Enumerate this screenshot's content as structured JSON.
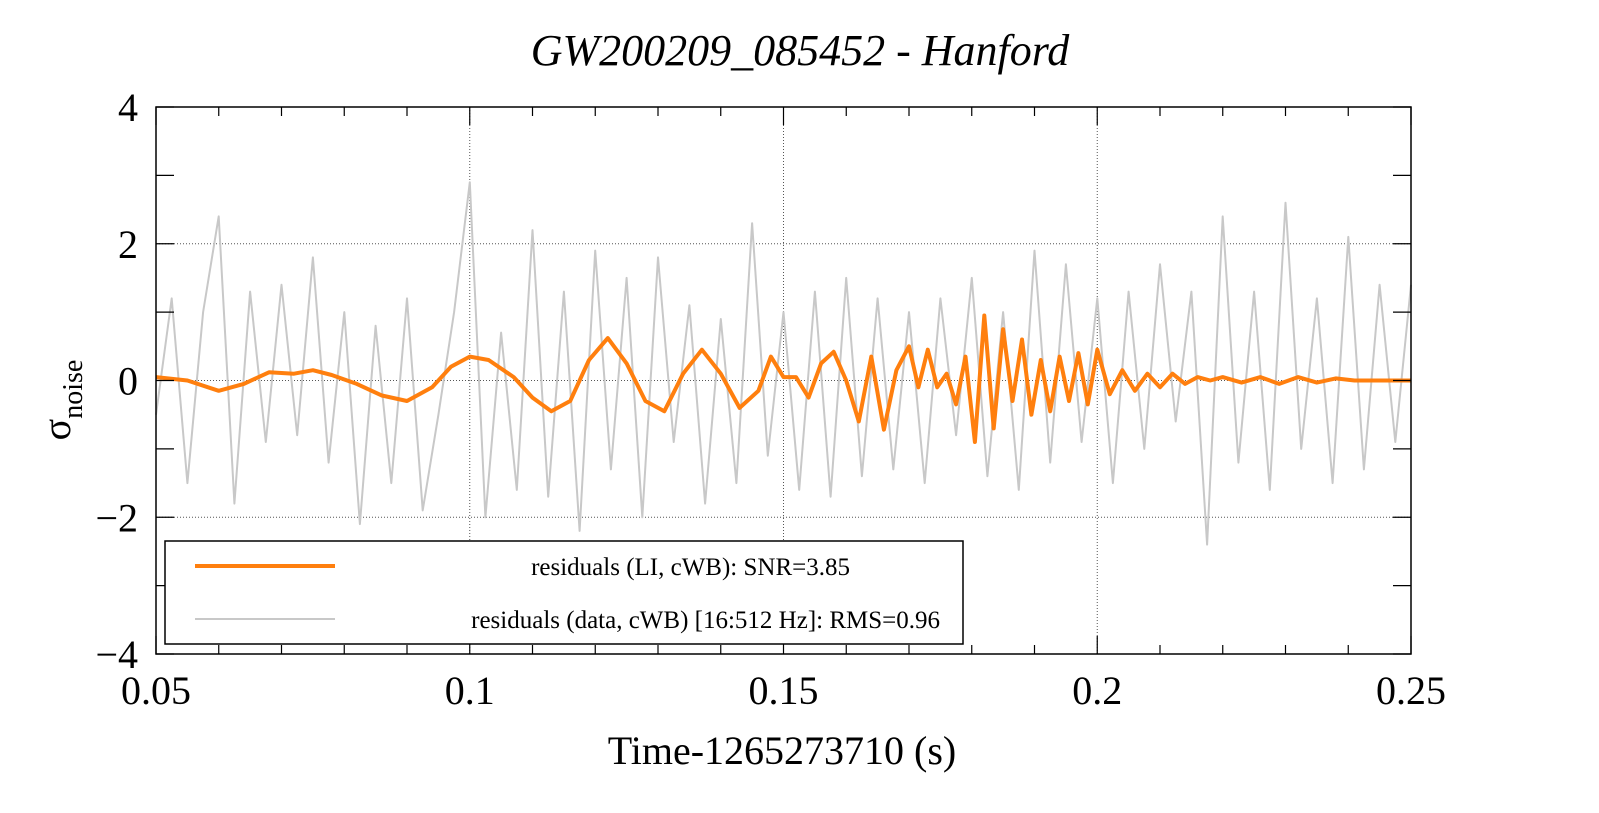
{
  "chart_data": {
    "type": "line",
    "title": "GW200209_085452 - Hanford",
    "xlabel": "Time-1265273710 (s)",
    "ylabel": "σ",
    "ylabel_sub": "noise",
    "xlim": [
      0.05,
      0.25
    ],
    "ylim": [
      -4,
      4
    ],
    "x_ticks": [
      0.05,
      0.1,
      0.15,
      0.2,
      0.25
    ],
    "x_tick_labels": [
      "0.05",
      "0.1",
      "0.15",
      "0.2",
      "0.25"
    ],
    "y_ticks": [
      -4,
      -2,
      0,
      2,
      4
    ],
    "y_tick_labels": [
      "−4",
      "−2",
      "0",
      "2",
      "4"
    ],
    "grid": true,
    "legend_position": "bottom-left",
    "series": [
      {
        "name": "residuals (LI, cWB): SNR=3.85",
        "color": "#ff7f0e",
        "x": [
          0.05,
          0.055,
          0.06,
          0.064,
          0.068,
          0.072,
          0.075,
          0.078,
          0.082,
          0.086,
          0.09,
          0.094,
          0.097,
          0.1,
          0.103,
          0.107,
          0.11,
          0.113,
          0.116,
          0.119,
          0.122,
          0.125,
          0.128,
          0.131,
          0.134,
          0.137,
          0.14,
          0.143,
          0.146,
          0.148,
          0.15,
          0.152,
          0.154,
          0.156,
          0.158,
          0.16,
          0.162,
          0.164,
          0.166,
          0.168,
          0.17,
          0.1715,
          0.173,
          0.1745,
          0.176,
          0.1775,
          0.179,
          0.1805,
          0.182,
          0.1835,
          0.185,
          0.1865,
          0.188,
          0.1895,
          0.191,
          0.1925,
          0.194,
          0.1955,
          0.197,
          0.1985,
          0.2,
          0.202,
          0.204,
          0.206,
          0.208,
          0.21,
          0.212,
          0.214,
          0.216,
          0.218,
          0.22,
          0.223,
          0.226,
          0.229,
          0.232,
          0.235,
          0.238,
          0.241,
          0.244,
          0.247,
          0.25
        ],
        "y": [
          0.05,
          0.0,
          -0.15,
          -0.05,
          0.12,
          0.1,
          0.15,
          0.08,
          -0.05,
          -0.22,
          -0.3,
          -0.1,
          0.2,
          0.35,
          0.3,
          0.05,
          -0.25,
          -0.45,
          -0.3,
          0.3,
          0.62,
          0.25,
          -0.3,
          -0.45,
          0.1,
          0.45,
          0.1,
          -0.4,
          -0.15,
          0.35,
          0.05,
          0.05,
          -0.25,
          0.25,
          0.42,
          0.0,
          -0.6,
          0.35,
          -0.72,
          0.15,
          0.5,
          -0.1,
          0.45,
          -0.1,
          0.1,
          -0.35,
          0.35,
          -0.9,
          0.95,
          -0.7,
          0.75,
          -0.3,
          0.6,
          -0.5,
          0.3,
          -0.45,
          0.35,
          -0.3,
          0.4,
          -0.35,
          0.45,
          -0.2,
          0.15,
          -0.15,
          0.1,
          -0.1,
          0.1,
          -0.05,
          0.05,
          0.0,
          0.05,
          -0.03,
          0.05,
          -0.05,
          0.05,
          -0.03,
          0.03,
          0.0,
          0.0,
          0.0,
          0.0
        ]
      },
      {
        "name": "residuals (data, cWB) [16:512 Hz]: RMS=0.96",
        "color": "#c8c8c8",
        "x": [
          0.05,
          0.0525,
          0.055,
          0.0575,
          0.06,
          0.0625,
          0.065,
          0.0675,
          0.07,
          0.0725,
          0.075,
          0.0775,
          0.08,
          0.0825,
          0.085,
          0.0875,
          0.09,
          0.0925,
          0.095,
          0.0975,
          0.1,
          0.1025,
          0.105,
          0.1075,
          0.11,
          0.1125,
          0.115,
          0.1175,
          0.12,
          0.1225,
          0.125,
          0.1275,
          0.13,
          0.1325,
          0.135,
          0.1375,
          0.14,
          0.1425,
          0.145,
          0.1475,
          0.15,
          0.1525,
          0.155,
          0.1575,
          0.16,
          0.1625,
          0.165,
          0.1675,
          0.17,
          0.1725,
          0.175,
          0.1775,
          0.18,
          0.1825,
          0.185,
          0.1875,
          0.19,
          0.1925,
          0.195,
          0.1975,
          0.2,
          0.2025,
          0.205,
          0.2075,
          0.21,
          0.2125,
          0.215,
          0.2175,
          0.22,
          0.2225,
          0.225,
          0.2275,
          0.23,
          0.2325,
          0.235,
          0.2375,
          0.24,
          0.2425,
          0.245,
          0.2475,
          0.25
        ],
        "y": [
          -0.5,
          1.2,
          -1.5,
          1.0,
          2.4,
          -1.8,
          1.3,
          -0.9,
          1.4,
          -0.8,
          1.8,
          -1.2,
          1.0,
          -2.1,
          0.8,
          -1.5,
          1.2,
          -1.9,
          -0.5,
          1.0,
          2.9,
          -2.0,
          0.7,
          -1.6,
          2.2,
          -1.7,
          1.3,
          -2.2,
          1.9,
          -1.3,
          1.5,
          -2.0,
          1.8,
          -0.9,
          1.1,
          -1.8,
          0.9,
          -1.5,
          2.3,
          -1.1,
          1.0,
          -1.6,
          1.3,
          -1.7,
          1.5,
          -1.4,
          1.2,
          -1.3,
          1.0,
          -1.5,
          1.2,
          -0.8,
          1.5,
          -1.4,
          1.0,
          -1.6,
          1.9,
          -1.2,
          1.7,
          -0.9,
          1.2,
          -1.5,
          1.3,
          -1.0,
          1.7,
          -0.6,
          1.3,
          -2.4,
          2.4,
          -1.2,
          1.3,
          -1.6,
          2.6,
          -1.0,
          1.2,
          -1.5,
          2.1,
          -1.3,
          1.4,
          -0.9,
          1.4
        ]
      }
    ]
  }
}
